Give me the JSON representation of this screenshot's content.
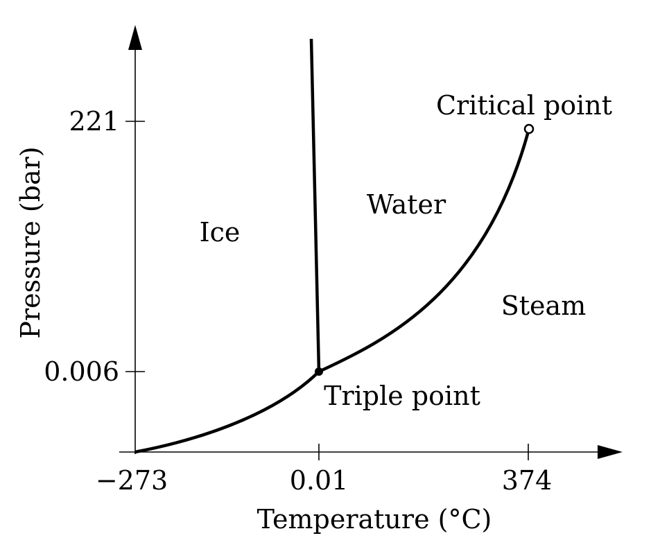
{
  "diagram": {
    "axes": {
      "x_label": "Temperature (°C)",
      "y_label": "Pressure (bar)",
      "x_ticks": [
        "−273",
        "0.01",
        "374"
      ],
      "y_ticks": [
        "0.006",
        "221"
      ]
    },
    "regions": {
      "ice": "Ice",
      "water": "Water",
      "steam": "Steam"
    },
    "points": {
      "triple": "Triple point",
      "critical": "Critical point"
    },
    "colors": {
      "line": "#000000",
      "background": "#ffffff"
    }
  }
}
